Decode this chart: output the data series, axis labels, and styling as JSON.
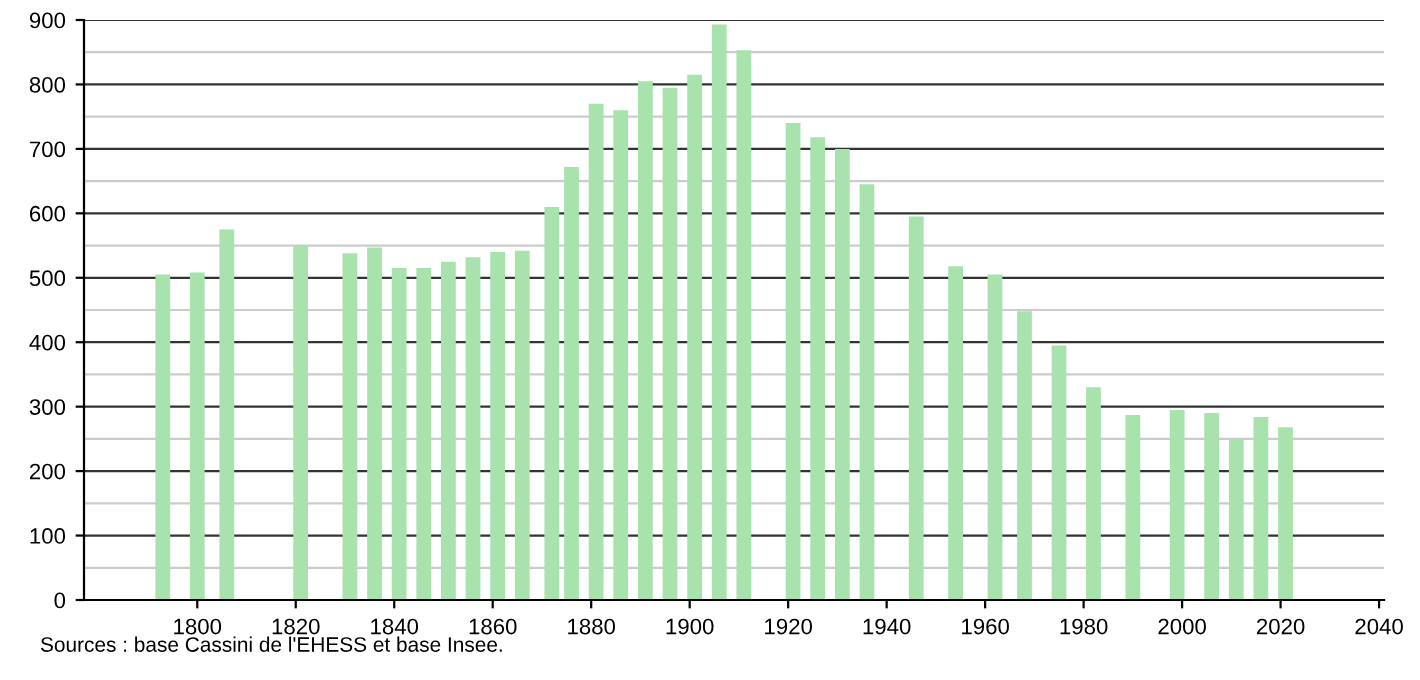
{
  "chart_data": {
    "type": "bar",
    "x": [
      1793,
      1800,
      1806,
      1821,
      1831,
      1836,
      1841,
      1846,
      1851,
      1856,
      1861,
      1866,
      1872,
      1876,
      1881,
      1886,
      1891,
      1896,
      1901,
      1906,
      1911,
      1921,
      1926,
      1931,
      1936,
      1946,
      1954,
      1962,
      1968,
      1975,
      1982,
      1990,
      1999,
      2006,
      2011,
      2016,
      2021
    ],
    "values": [
      505,
      508,
      575,
      550,
      538,
      547,
      515,
      515,
      525,
      532,
      540,
      542,
      610,
      672,
      770,
      760,
      805,
      795,
      815,
      893,
      853,
      740,
      718,
      700,
      645,
      595,
      518,
      505,
      448,
      395,
      330,
      287,
      295,
      290,
      250,
      284,
      268
    ],
    "color": "#a8e2ac",
    "xlim": [
      1777,
      2041
    ],
    "xticks": [
      1800,
      1820,
      1840,
      1860,
      1880,
      1900,
      1920,
      1940,
      1960,
      1980,
      2000,
      2020,
      2040
    ],
    "ylim": [
      0,
      900
    ],
    "yticks": [
      0,
      100,
      200,
      300,
      400,
      500,
      600,
      700,
      800,
      900
    ],
    "grid": "y",
    "annotations": [
      "Sources : base Cassini de l'EHESS et base Insee."
    ]
  }
}
